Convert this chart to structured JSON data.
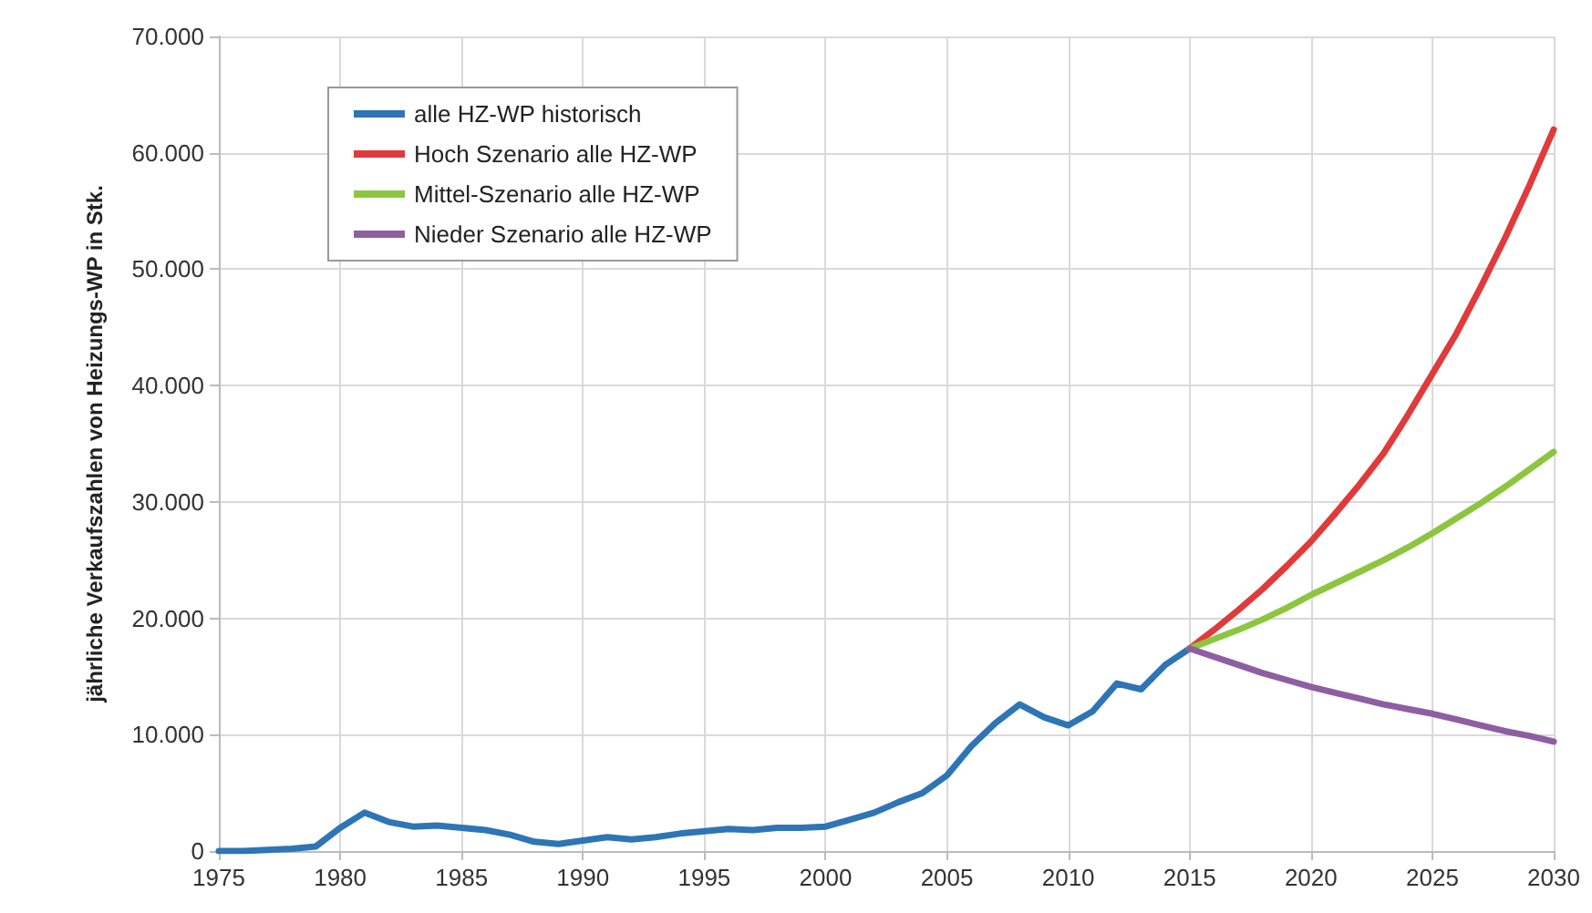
{
  "chart_data": {
    "type": "line",
    "ylabel": "jährliche Verkaufszahlen von Heizungs-WP in Stk.",
    "xlim": [
      1975,
      2030
    ],
    "xticks": [
      1975,
      1980,
      1985,
      1990,
      1995,
      2000,
      2005,
      2010,
      2015,
      2020,
      2025,
      2030
    ],
    "ylim": [
      0,
      70000
    ],
    "yticks": [
      0,
      {
        "value": 10000,
        "label": "10.000"
      },
      {
        "value": 20000,
        "label": "20.000"
      },
      {
        "value": 30000,
        "label": "30.000"
      },
      {
        "value": 40000,
        "label": "40.000"
      },
      {
        "value": 50000,
        "label": "50.000"
      },
      {
        "value": 60000,
        "label": "60.000"
      },
      {
        "value": 70000,
        "label": "70.000"
      }
    ],
    "grid": true,
    "legend": "top left",
    "marker": "none",
    "line_style": "solid",
    "series": [
      {
        "name": "alle HZ-WP historisch",
        "color": "#2e75b6",
        "x": [
          1975,
          1976,
          1977,
          1978,
          1979,
          1980,
          1981,
          1982,
          1983,
          1984,
          1985,
          1986,
          1987,
          1988,
          1989,
          1990,
          1991,
          1992,
          1993,
          1994,
          1995,
          1996,
          1997,
          1998,
          1999,
          2000,
          2001,
          2002,
          2003,
          2004,
          2005,
          2006,
          2007,
          2008,
          2009,
          2010,
          2011,
          2012,
          2013,
          2014,
          2015
        ],
        "values": [
          0,
          0,
          100,
          200,
          400,
          2000,
          3300,
          2500,
          2100,
          2200,
          2000,
          1800,
          1400,
          800,
          600,
          900,
          1200,
          1000,
          1200,
          1500,
          1700,
          1900,
          1800,
          2000,
          2000,
          2100,
          2700,
          3300,
          4200,
          5000,
          6500,
          9000,
          11000,
          12600,
          11500,
          10800,
          12000,
          14400,
          13900,
          16000,
          17400
        ]
      },
      {
        "name": "Hoch Szenario alle HZ-WP",
        "color": "#e03a3a",
        "x": [
          2015,
          2016,
          2017,
          2018,
          2019,
          2020,
          2021,
          2022,
          2023,
          2024,
          2025,
          2026,
          2027,
          2028,
          2029,
          2030
        ],
        "values": [
          17400,
          19000,
          20700,
          22500,
          24500,
          26600,
          29000,
          31500,
          34200,
          37500,
          41000,
          44500,
          48500,
          52700,
          57200,
          62000
        ]
      },
      {
        "name": "Mittel-Szenario alle HZ-WP",
        "color": "#8cc63f",
        "x": [
          2015,
          2016,
          2017,
          2018,
          2019,
          2020,
          2021,
          2022,
          2023,
          2024,
          2025,
          2026,
          2027,
          2028,
          2029,
          2030
        ],
        "values": [
          17400,
          18200,
          19000,
          19900,
          20900,
          22000,
          23000,
          24000,
          25000,
          26100,
          27300,
          28600,
          29900,
          31300,
          32800,
          34300
        ]
      },
      {
        "name": "Nieder Szenario alle HZ-WP",
        "color": "#8e5ea2",
        "x": [
          2015,
          2016,
          2017,
          2018,
          2019,
          2020,
          2021,
          2022,
          2023,
          2024,
          2025,
          2026,
          2027,
          2028,
          2029,
          2030
        ],
        "values": [
          17400,
          16700,
          16000,
          15300,
          14700,
          14100,
          13600,
          13100,
          12600,
          12200,
          11800,
          11300,
          10800,
          10300,
          9900,
          9400
        ]
      }
    ]
  }
}
